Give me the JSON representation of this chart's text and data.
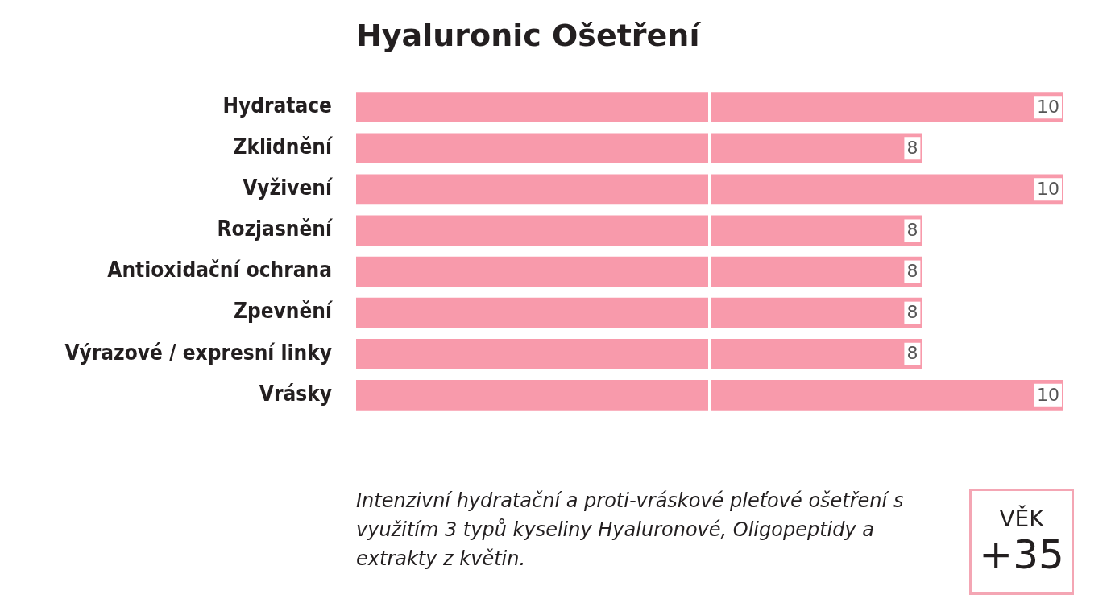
{
  "chart_data": {
    "type": "bar",
    "orientation": "horizontal",
    "title": "Hyaluronic Ošetření",
    "categories": [
      "Hydratace",
      "Zklidnění",
      "Vyživení",
      "Rozjasnění",
      "Antioxidační ochrana",
      "Zpevnění",
      "Výrazové / expresní linky",
      "Vrásky"
    ],
    "series": [
      {
        "color": "#f89aab",
        "values": [
          10,
          8,
          10,
          8,
          8,
          8,
          8,
          10
        ]
      }
    ],
    "data_labels": true,
    "ref_lines": [
      {
        "axis": "x",
        "value": 5,
        "color": "#ffffff"
      }
    ],
    "xlim": [
      0,
      10
    ],
    "tick_labels": "y",
    "legend": false,
    "grid": false,
    "annotations": [
      "Intenzivní hydratační a proti-vráskové pleťové ošetření s využitím 3 typů kyseliny Hyaluronové, Oligopeptidy a extrakty z květin.",
      "VĚK",
      "+35"
    ]
  }
}
